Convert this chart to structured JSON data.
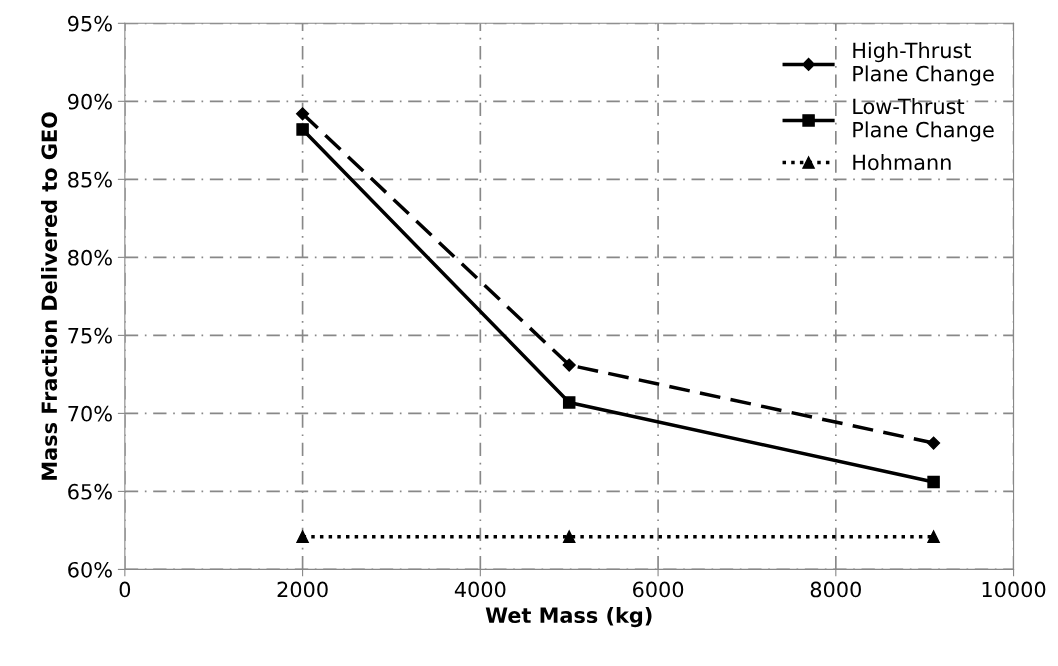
{
  "chart_data": {
    "type": "line",
    "xlabel": "Wet Mass (kg)",
    "ylabel": "Mass Fraction Delivered to GEO",
    "x": [
      2000,
      5000,
      9100
    ],
    "series": [
      {
        "name": "High-Thrust\nPlane Change",
        "color": "#000000",
        "values": [
          89.2,
          73.1,
          68.1
        ],
        "marker": "diamond",
        "line_style": "dashed"
      },
      {
        "name": "Low-Thrust\nPlane Change",
        "color": "#000000",
        "values": [
          88.2,
          70.7,
          65.6
        ],
        "marker": "square",
        "line_style": "solid"
      },
      {
        "name": "Hohmann",
        "color": "#000000",
        "values": [
          62.1,
          62.1,
          62.1
        ],
        "marker": "triangle",
        "line_style": "dotted"
      }
    ],
    "xlim": [
      0,
      10000
    ],
    "xticks": [
      0,
      2000,
      4000,
      6000,
      8000,
      10000
    ],
    "ylim": [
      60,
      95
    ],
    "yticks": [
      {
        "value": 60,
        "label": "60%"
      },
      {
        "value": 65,
        "label": "65%"
      },
      {
        "value": 70,
        "label": "70%"
      },
      {
        "value": 75,
        "label": "75%"
      },
      {
        "value": 80,
        "label": "80%"
      },
      {
        "value": 85,
        "label": "85%"
      },
      {
        "value": 90,
        "label": "90%"
      },
      {
        "value": 95,
        "label": "95%"
      }
    ],
    "grid": true,
    "legend": "top right"
  }
}
